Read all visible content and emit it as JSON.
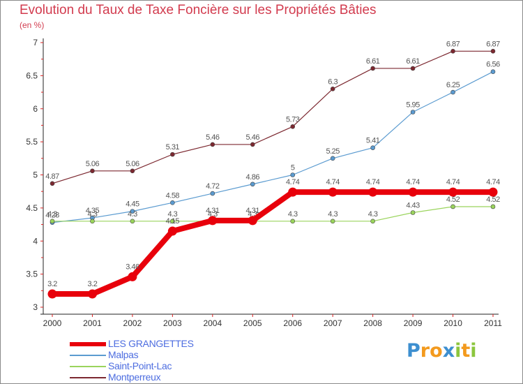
{
  "title": "Evolution du Taux de Taxe Foncière sur les Propriétés Bâties",
  "subtitle": "(en %)",
  "logo": {
    "text": [
      "P",
      "r",
      "o",
      "x",
      "i",
      "t",
      "i"
    ],
    "colors": [
      "#3d8fd0",
      "#f39a1e",
      "#f39a1e",
      "#3d8fd0",
      "#8cc63e",
      "#f39a1e",
      "#8cc63e"
    ]
  },
  "chart_data": {
    "type": "line",
    "title": "Evolution du Taux de Taxe Foncière sur les Propriétés Bâties",
    "ylabel": "(en %)",
    "xlabel": "",
    "categories": [
      "2000",
      "2001",
      "2002",
      "2003",
      "2004",
      "2005",
      "2006",
      "2007",
      "2008",
      "2009",
      "2010",
      "2011"
    ],
    "ylim": [
      3,
      7
    ],
    "yticks": [
      "3",
      "3.5",
      "4",
      "4.5",
      "5",
      "5.5",
      "6",
      "6.5",
      "7"
    ],
    "grid": false,
    "legend_position": "bottom-left",
    "series": [
      {
        "name": "Montperreux",
        "color": "#7c2830",
        "values": [
          4.87,
          5.06,
          5.06,
          5.31,
          5.46,
          5.46,
          5.73,
          6.3,
          6.61,
          6.61,
          6.87,
          6.87
        ],
        "labels": [
          "4.87",
          "5.06",
          "5.06",
          "5.31",
          "5.46",
          "5.46",
          "5.73",
          "6.3",
          "6.61",
          "6.61",
          "6.87",
          "6.87"
        ]
      },
      {
        "name": "Malpas",
        "color": "#5b9bd0",
        "values": [
          4.28,
          4.35,
          4.45,
          4.58,
          4.72,
          4.86,
          5,
          5.25,
          5.41,
          5.95,
          6.25,
          6.56
        ],
        "labels": [
          "4.28",
          "4.35",
          "4.45",
          "4.58",
          "4.72",
          "4.86",
          "5",
          "5.25",
          "5.41",
          "5.95",
          "6.25",
          "6.56"
        ]
      },
      {
        "name": "Saint-Point-Lac",
        "color": "#9ad45c",
        "values": [
          4.3,
          4.3,
          4.3,
          4.3,
          4.3,
          4.3,
          4.3,
          4.3,
          4.3,
          4.43,
          4.52,
          4.52
        ],
        "labels": [
          "4.3",
          "4.3",
          "4.3",
          "4.3",
          "4.3",
          "4.3",
          "4.3",
          "4.3",
          "4.3",
          "4.43",
          "4.52",
          "4.52"
        ]
      },
      {
        "name": "LES GRANGETTES",
        "color": "#e8000b",
        "values": [
          3.2,
          3.2,
          3.46,
          4.15,
          4.31,
          4.31,
          4.74,
          4.74,
          4.74,
          4.74,
          4.74,
          4.74
        ],
        "labels": [
          "3.2",
          "3.2",
          "3.46",
          "4.15",
          "4.31",
          "4.31",
          "4.74",
          "4.74",
          "4.74",
          "4.74",
          "4.74",
          "4.74"
        ]
      }
    ],
    "legend": [
      "LES GRANGETTES",
      "Malpas",
      "Saint-Point-Lac",
      "Montperreux"
    ]
  }
}
